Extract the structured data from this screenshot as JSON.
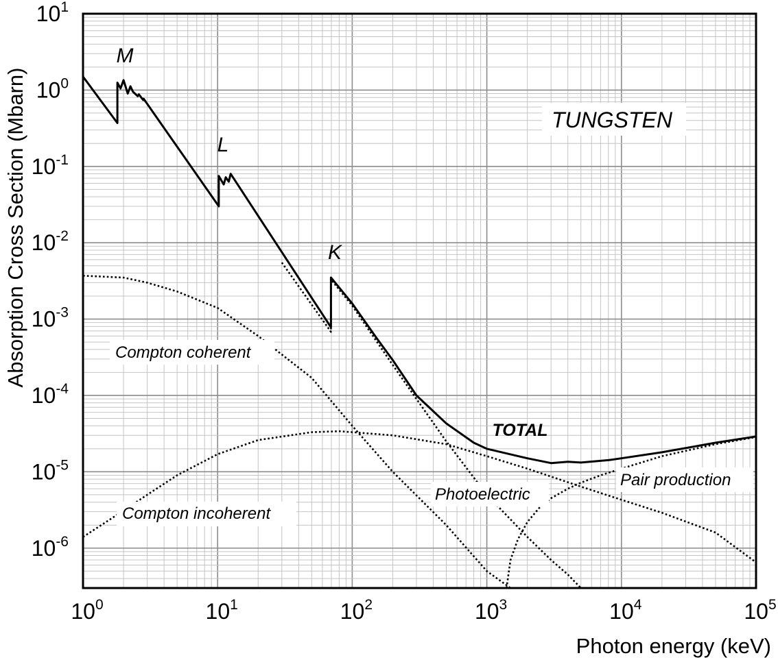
{
  "chart_data": {
    "type": "line",
    "title": "",
    "xlabel": "Photon energy (keV)",
    "ylabel": "Absorption Cross Section (Mbarn)",
    "x_scale": "log",
    "y_scale": "log",
    "xlim": [
      1,
      100000
    ],
    "ylim": [
      3e-07,
      10
    ],
    "grid": true,
    "x_ticks": [
      {
        "value": 1,
        "base": "10",
        "exp": "0"
      },
      {
        "value": 10,
        "base": "10",
        "exp": "1"
      },
      {
        "value": 100,
        "base": "10",
        "exp": "2"
      },
      {
        "value": 1000,
        "base": "10",
        "exp": "3"
      },
      {
        "value": 10000,
        "base": "10",
        "exp": "4"
      },
      {
        "value": 100000,
        "base": "10",
        "exp": "5"
      }
    ],
    "y_ticks": [
      {
        "value": 1e-06,
        "base": "10",
        "exp": "-6"
      },
      {
        "value": 1e-05,
        "base": "10",
        "exp": "-5"
      },
      {
        "value": 0.0001,
        "base": "10",
        "exp": "-4"
      },
      {
        "value": 0.001,
        "base": "10",
        "exp": "-3"
      },
      {
        "value": 0.01,
        "base": "10",
        "exp": "-2"
      },
      {
        "value": 0.1,
        "base": "10",
        "exp": "-1"
      },
      {
        "value": 1,
        "base": "10",
        "exp": "0"
      },
      {
        "value": 10,
        "base": "10",
        "exp": "1"
      }
    ],
    "series": [
      {
        "name": "TOTAL",
        "style": "solid",
        "x": [
          1,
          1.8,
          1.8,
          1.9,
          2.0,
          2.15,
          2.25,
          2.35,
          2.55,
          2.6,
          2.8,
          2.82,
          10.2,
          10.2,
          11.1,
          11.5,
          12.1,
          12.5,
          69.5,
          69.5,
          100,
          150,
          200,
          300,
          500,
          800,
          1000,
          2000,
          3000,
          4000,
          5000,
          8000,
          10000,
          20000,
          50000,
          100000
        ],
        "y": [
          1.5,
          0.37,
          1.25,
          1.05,
          1.35,
          0.9,
          1.12,
          0.95,
          0.83,
          0.88,
          0.74,
          0.77,
          0.03,
          0.075,
          0.058,
          0.072,
          0.063,
          0.08,
          0.00078,
          0.0035,
          0.0016,
          0.00058,
          0.00029,
          0.0001,
          4.3e-05,
          2.4e-05,
          2e-05,
          1.5e-05,
          1.3e-05,
          1.35e-05,
          1.32e-05,
          1.42e-05,
          1.5e-05,
          1.8e-05,
          2.4e-05,
          2.9e-05
        ]
      },
      {
        "name": "Photoelectric",
        "style": "dotted",
        "x": [
          30,
          69.5,
          69.5,
          100,
          200,
          300,
          500,
          1000,
          2000,
          3000,
          4000,
          5000
        ],
        "y": [
          0.0055,
          0.00068,
          0.0033,
          0.0015,
          0.00025,
          9e-05,
          2.5e-05,
          5e-06,
          1.4e-06,
          7e-07,
          4.5e-07,
          3e-07
        ]
      },
      {
        "name": "Compton coherent",
        "style": "dotted",
        "x": [
          1,
          2,
          3,
          5,
          10,
          20,
          50,
          100,
          200,
          500,
          1000,
          1500
        ],
        "y": [
          0.0037,
          0.0035,
          0.003,
          0.0023,
          0.0014,
          0.0006,
          0.00017,
          4e-05,
          1e-05,
          2e-06,
          5e-07,
          3e-07
        ]
      },
      {
        "name": "Compton incoherent",
        "style": "dotted",
        "x": [
          1,
          2,
          3,
          5,
          10,
          20,
          50,
          80,
          100,
          200,
          500,
          1000,
          2000,
          5000,
          10000,
          20000,
          50000,
          100000
        ],
        "y": [
          1.4e-06,
          3.1e-06,
          5e-06,
          9e-06,
          1.7e-05,
          2.6e-05,
          3.3e-05,
          3.4e-05,
          3.3e-05,
          3e-05,
          2.3e-05,
          1.6e-05,
          1.1e-05,
          6.4e-06,
          4.3e-06,
          2.9e-06,
          1.6e-06,
          6.5e-07
        ]
      },
      {
        "name": "Pair production",
        "style": "dotted",
        "x": [
          1400,
          1500,
          1700,
          2000,
          2500,
          3000,
          4000,
          5000,
          7000,
          10000,
          20000,
          50000,
          100000
        ],
        "y": [
          3e-07,
          7e-07,
          1.3e-06,
          2.2e-06,
          3.5e-06,
          4.5e-06,
          6e-06,
          7.2e-06,
          9e-06,
          1.1e-05,
          1.6e-05,
          2.3e-05,
          2.85e-05
        ]
      }
    ],
    "annotations": {
      "tungsten": "TUNGSTEN",
      "edge_m": "M",
      "edge_l": "L",
      "edge_k": "K",
      "total": "TOTAL",
      "compton_coherent": "Compton coherent",
      "compton_incoherent": "Compton incoherent",
      "photoelectric": "Photoelectric",
      "pair_production": "Pair production"
    }
  }
}
